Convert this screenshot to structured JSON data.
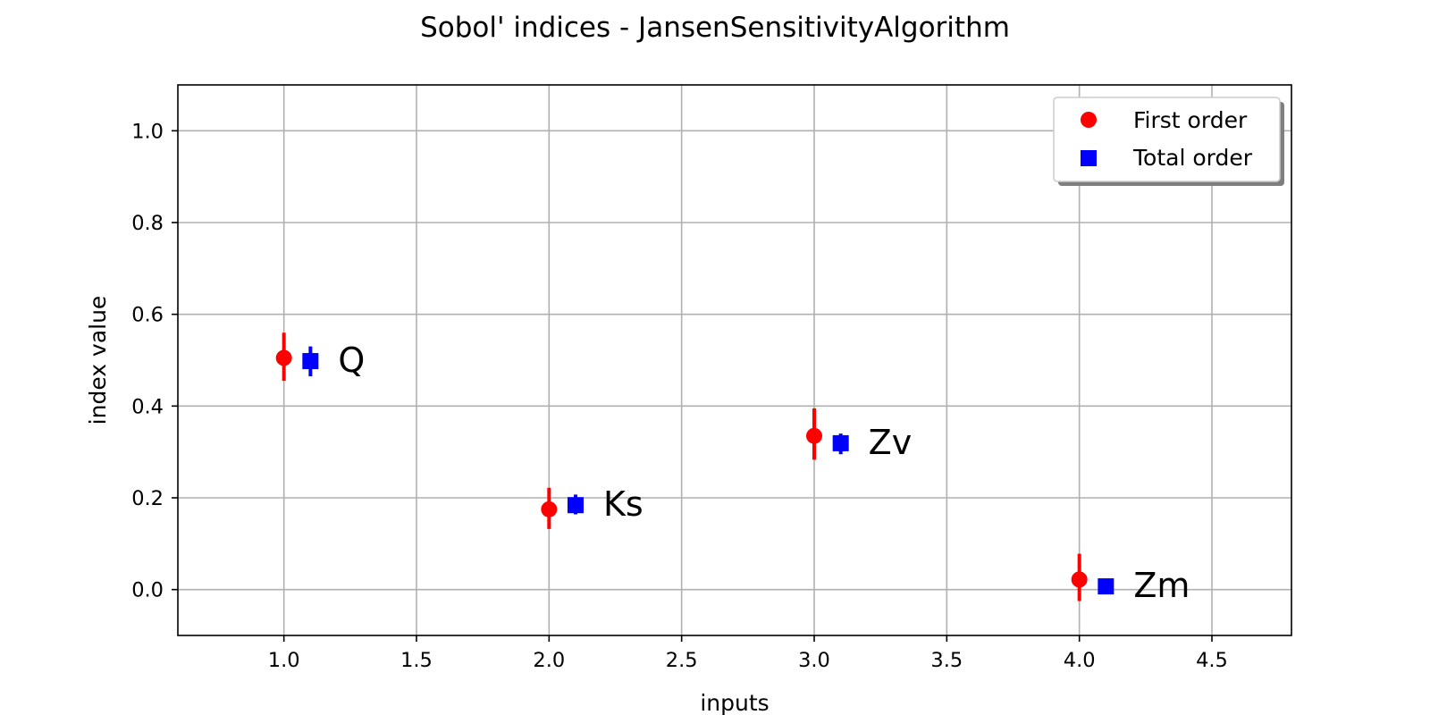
{
  "chart_data": {
    "type": "scatter",
    "title": "Sobol' indices - JansenSensitivityAlgorithm",
    "xlabel": "inputs",
    "ylabel": "index value",
    "xlim": [
      0.6,
      4.8
    ],
    "ylim": [
      -0.1,
      1.1
    ],
    "xticks": [
      1.0,
      1.5,
      2.0,
      2.5,
      3.0,
      3.5,
      4.0,
      4.5
    ],
    "yticks": [
      0.0,
      0.2,
      0.4,
      0.6,
      0.8,
      1.0
    ],
    "grid": true,
    "legend_position": "top-right",
    "labels": [
      "Q",
      "Ks",
      "Zv",
      "Zm"
    ],
    "series": [
      {
        "name": "First order",
        "marker": "circle",
        "color": "#ff0000",
        "x": [
          1.0,
          2.0,
          3.0,
          4.0
        ],
        "values": [
          0.505,
          0.175,
          0.335,
          0.022
        ],
        "lower": [
          0.455,
          0.132,
          0.283,
          -0.025
        ],
        "upper": [
          0.56,
          0.222,
          0.395,
          0.078
        ]
      },
      {
        "name": "Total order",
        "marker": "square",
        "color": "#0000ff",
        "x": [
          1.1,
          2.1,
          3.1,
          4.1
        ],
        "values": [
          0.498,
          0.184,
          0.319,
          0.007
        ],
        "lower": [
          0.465,
          0.164,
          0.295,
          0.0
        ],
        "upper": [
          0.53,
          0.207,
          0.34,
          0.015
        ]
      }
    ]
  }
}
